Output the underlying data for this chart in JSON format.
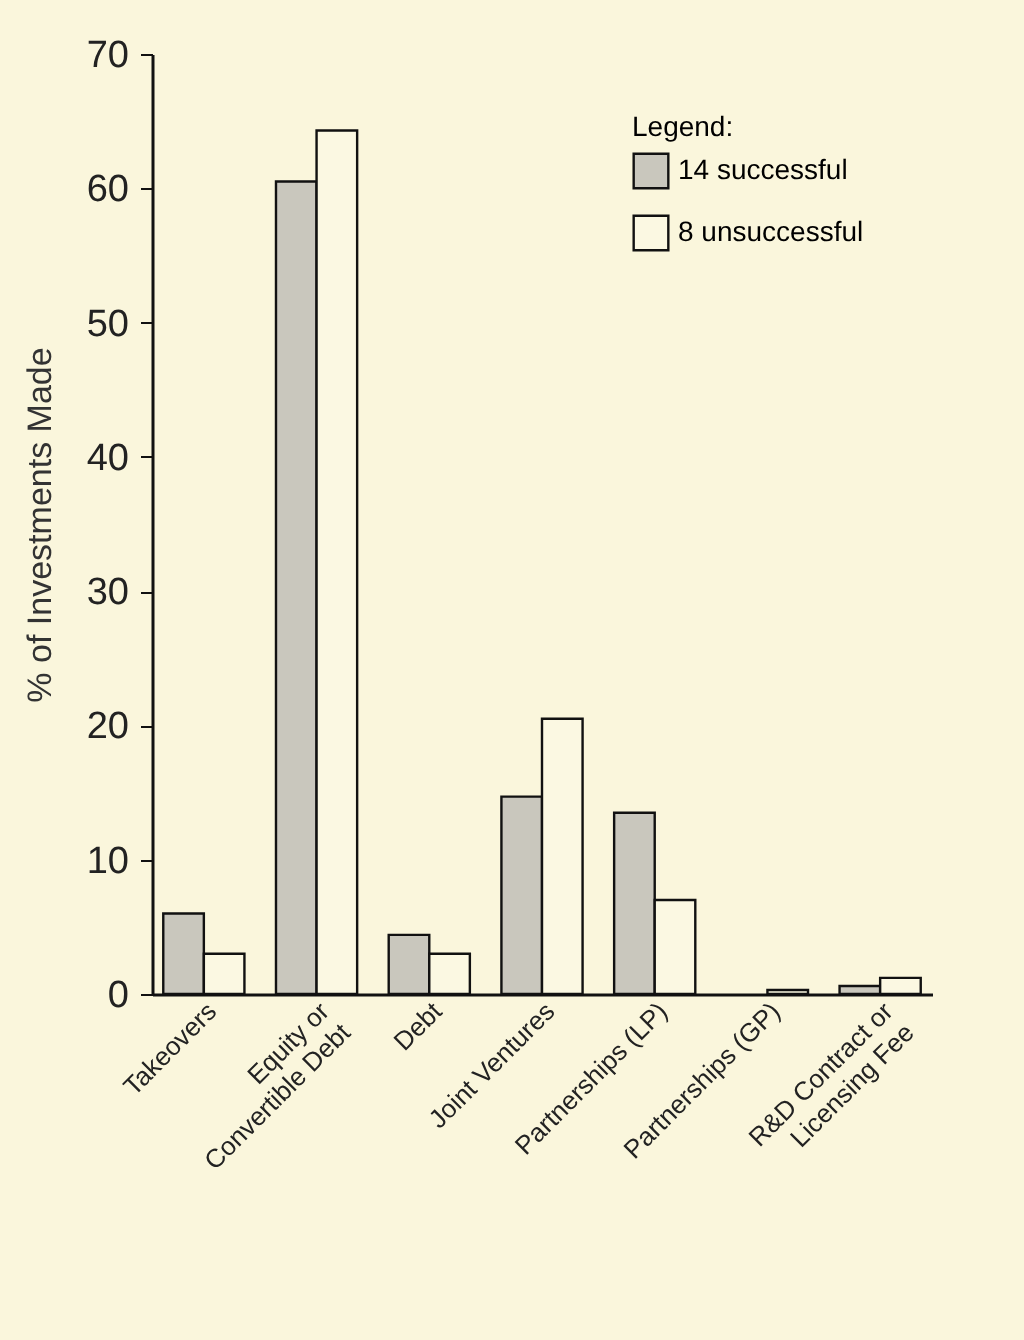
{
  "chart_data": {
    "type": "bar",
    "ylabel": "% of Investments Made",
    "legend_title": "Legend:",
    "legend": "top right",
    "categories": [
      "Takeovers",
      "Equity or\nConvertible Debt",
      "Debt",
      "Joint Ventures",
      "Partnerships (LP)",
      "Partnerships (GP)",
      "R&D Contract or\nLicensing Fee"
    ],
    "series": [
      {
        "name": "14  successful",
        "color": "#c9c7bd",
        "values": [
          6.0,
          60.5,
          4.4,
          14.7,
          13.5,
          null,
          0.6
        ]
      },
      {
        "name": "8  unsuccessful",
        "color": "#fbf8e2",
        "values": [
          3.0,
          64.3,
          3.0,
          20.5,
          7.0,
          0.3,
          1.2
        ]
      }
    ],
    "ylim": [
      0,
      70
    ],
    "yticks": [
      0,
      10,
      20,
      30,
      40,
      50,
      60,
      70
    ],
    "grid": false
  }
}
